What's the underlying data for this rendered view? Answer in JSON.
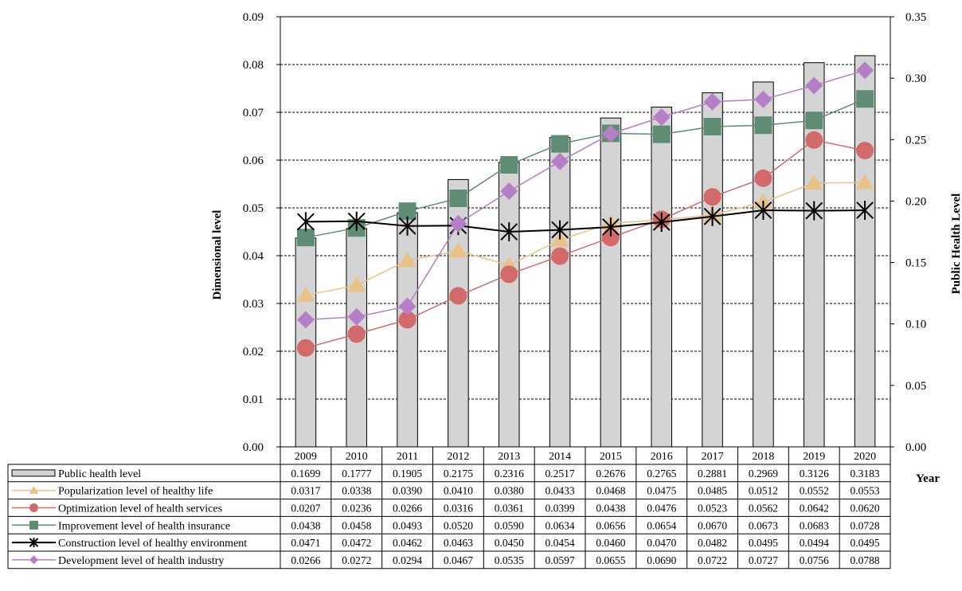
{
  "chart_data": {
    "type": "bar",
    "categories": [
      "2009",
      "2010",
      "2011",
      "2012",
      "2013",
      "2014",
      "2015",
      "2016",
      "2017",
      "2018",
      "2019",
      "2020"
    ],
    "xlabel": "Year",
    "ylabel": "Dimensional level",
    "y2label": "Public Health Level",
    "ylim": [
      0,
      0.09
    ],
    "y2lim": [
      0,
      0.35
    ],
    "y_ticks": [
      "0.00",
      "0.01",
      "0.02",
      "0.03",
      "0.04",
      "0.05",
      "0.06",
      "0.07",
      "0.08",
      "0.09"
    ],
    "y2_ticks": [
      "0.00",
      "0.05",
      "0.10",
      "0.15",
      "0.20",
      "0.25",
      "0.30",
      "0.35"
    ],
    "grid": true,
    "legend": "data-table-left",
    "bar_series": {
      "name": "Public health level",
      "axis": "secondary",
      "color": "#d4d4d4",
      "values": [
        0.1699,
        0.1777,
        0.1905,
        0.2175,
        0.2316,
        0.2517,
        0.2676,
        0.2765,
        0.2881,
        0.2969,
        0.3126,
        0.3183
      ],
      "labels": [
        "0.1699",
        "0.1777",
        "0.1905",
        "0.2175",
        "0.2316",
        "0.2517",
        "0.2676",
        "0.2765",
        "0.2881",
        "0.2969",
        "0.3126",
        "0.3183"
      ]
    },
    "series": [
      {
        "name": "Popularization level of healthy life",
        "marker": "triangle",
        "color": "#e8c287",
        "values": [
          0.0317,
          0.0338,
          0.039,
          0.041,
          0.038,
          0.0433,
          0.0468,
          0.0475,
          0.0485,
          0.0512,
          0.0552,
          0.0553
        ],
        "labels": [
          "0.0317",
          "0.0338",
          "0.0390",
          "0.0410",
          "0.0380",
          "0.0433",
          "0.0468",
          "0.0475",
          "0.0485",
          "0.0512",
          "0.0552",
          "0.0553"
        ]
      },
      {
        "name": "Optimization level of health services",
        "marker": "circle",
        "color": "#d26a6c",
        "values": [
          0.0207,
          0.0236,
          0.0266,
          0.0316,
          0.0361,
          0.0399,
          0.0438,
          0.0476,
          0.0523,
          0.0562,
          0.0642,
          0.062
        ],
        "labels": [
          "0.0207",
          "0.0236",
          "0.0266",
          "0.0316",
          "0.0361",
          "0.0399",
          "0.0438",
          "0.0476",
          "0.0523",
          "0.0562",
          "0.0642",
          "0.0620"
        ]
      },
      {
        "name": "Improvement level of health insurance",
        "marker": "square",
        "color": "#5f8c74",
        "values": [
          0.0438,
          0.0458,
          0.0493,
          0.052,
          0.059,
          0.0634,
          0.0656,
          0.0654,
          0.067,
          0.0673,
          0.0683,
          0.0728
        ],
        "labels": [
          "0.0438",
          "0.0458",
          "0.0493",
          "0.0520",
          "0.0590",
          "0.0634",
          "0.0656",
          "0.0654",
          "0.0670",
          "0.0673",
          "0.0683",
          "0.0728"
        ]
      },
      {
        "name": "Construction level of healthy environment",
        "marker": "star",
        "color": "#000000",
        "values": [
          0.0471,
          0.0472,
          0.0462,
          0.0463,
          0.045,
          0.0454,
          0.046,
          0.047,
          0.0482,
          0.0495,
          0.0494,
          0.0495
        ],
        "labels": [
          "0.0471",
          "0.0472",
          "0.0462",
          "0.0463",
          "0.0450",
          "0.0454",
          "0.0460",
          "0.0470",
          "0.0482",
          "0.0495",
          "0.0494",
          "0.0495"
        ]
      },
      {
        "name": "Development level of health industry",
        "marker": "diamond",
        "color": "#b57fc6",
        "values": [
          0.0266,
          0.0272,
          0.0294,
          0.0467,
          0.0535,
          0.0597,
          0.0655,
          0.069,
          0.0722,
          0.0727,
          0.0756,
          0.0788
        ],
        "labels": [
          "0.0266",
          "0.0272",
          "0.0294",
          "0.0467",
          "0.0535",
          "0.0597",
          "0.0655",
          "0.0690",
          "0.0722",
          "0.0727",
          "0.0756",
          "0.0788"
        ]
      }
    ]
  }
}
